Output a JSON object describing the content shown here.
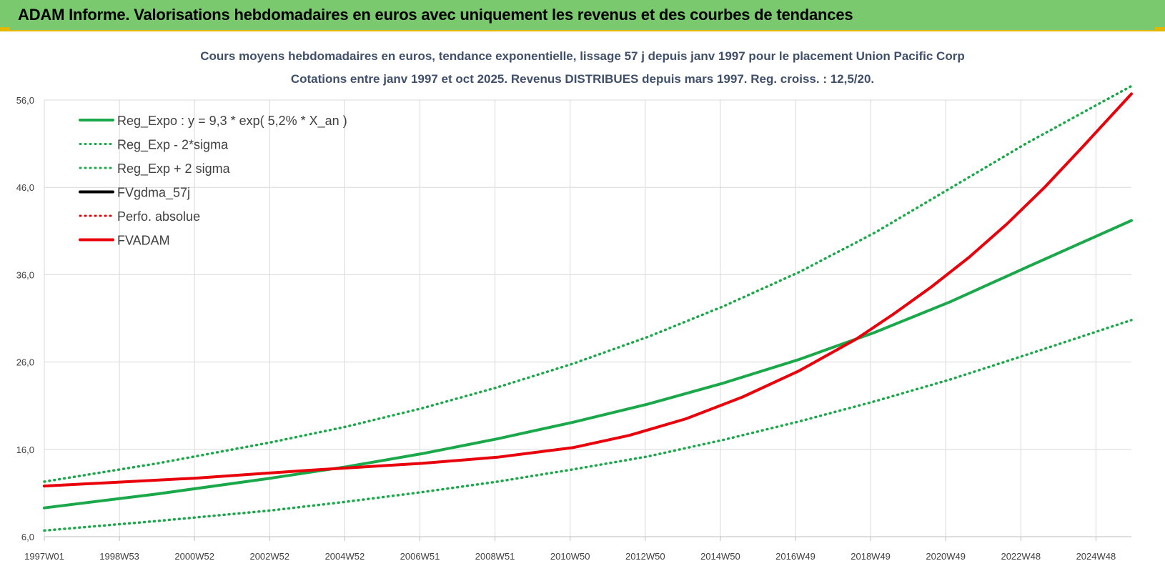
{
  "header": {
    "title": "ADAM Informe. Valorisations hebdomadaires en euros avec uniquement les revenus et des courbes de tendances"
  },
  "chart_data": {
    "type": "line",
    "title_line1": "Cours moyens hebdomadaires en euros, tendance exponentielle, lissage 57 j depuis janv 1997 pour le placement Union Pacific Corp",
    "title_line2": "Cotations entre janv 1997 et oct 2025. Revenus DISTRIBUES depuis mars 1997. Reg. croiss. : 12,5/20.",
    "ylim": [
      6,
      56
    ],
    "yticks": [
      "56,0",
      "46,0",
      "36,0",
      "26,0",
      "16,0",
      "6,0"
    ],
    "ytick_values": [
      56,
      46,
      36,
      26,
      16,
      6
    ],
    "xticks": [
      "1997W01",
      "1998W53",
      "2000W52",
      "2002W52",
      "2004W52",
      "2006W51",
      "2008W51",
      "2010W50",
      "2012W50",
      "2014W50",
      "2016W49",
      "2018W49",
      "2020W49",
      "2022W48",
      "2024W48"
    ],
    "x_start": 1997.0,
    "x_end": 2025.8,
    "grid": true,
    "legend_position": "top-left",
    "legend": [
      {
        "label": "Reg_Expo : y = 9,3 * exp( 5,2% *  X_an )",
        "color": "#1aa84a",
        "style": "solid"
      },
      {
        "label": "Reg_Exp - 2*sigma",
        "color": "#1aa84a",
        "style": "dotted"
      },
      {
        "label": "Reg_Exp + 2 sigma",
        "color": "#1aa84a",
        "style": "dotted"
      },
      {
        "label": "FVgdma_57j",
        "color": "#000000",
        "style": "solid"
      },
      {
        "label": "Perfo. absolue",
        "color": "#e8000a",
        "style": "dotted"
      },
      {
        "label": "FVADAM",
        "color": "#e8000a",
        "style": "solid"
      }
    ],
    "series": [
      {
        "name": "Reg_Expo : y = 9,3 * exp( 5,2% *  X_an )",
        "x": [
          1997.0,
          2000.0,
          2003.0,
          2005.0,
          2007.0,
          2009.0,
          2011.0,
          2013.0,
          2015.0,
          2017.0,
          2019.0,
          2021.0,
          2023.0,
          2025.8
        ],
        "values": [
          9.3,
          10.9,
          12.7,
          14.0,
          15.5,
          17.2,
          19.1,
          21.2,
          23.6,
          26.3,
          29.4,
          32.9,
          36.8,
          42.2
        ]
      },
      {
        "name": "Reg_Exp - 2*sigma",
        "x": [
          1997.0,
          2000.0,
          2003.0,
          2005.0,
          2007.0,
          2009.0,
          2011.0,
          2013.0,
          2015.0,
          2017.0,
          2019.0,
          2021.0,
          2023.0,
          2025.8
        ],
        "values": [
          6.7,
          7.8,
          9.0,
          10.0,
          11.1,
          12.3,
          13.7,
          15.2,
          17.1,
          19.2,
          21.5,
          24.0,
          26.8,
          30.8
        ]
      },
      {
        "name": "Reg_Exp + 2 sigma",
        "x": [
          1997.0,
          2000.0,
          2003.0,
          2005.0,
          2007.0,
          2009.0,
          2011.0,
          2013.0,
          2015.0,
          2017.0,
          2019.0,
          2021.0,
          2023.0,
          2025.8
        ],
        "values": [
          12.3,
          14.4,
          16.8,
          18.6,
          20.7,
          23.1,
          25.8,
          28.9,
          32.4,
          36.3,
          40.8,
          45.9,
          51.0,
          57.6
        ]
      },
      {
        "name": "FVgdma_57j",
        "x": [
          1997.0,
          2001.0,
          2004.0,
          2007.0,
          2009.0,
          2011.0,
          2012.5,
          2014.0,
          2015.5,
          2017.0,
          2018.5,
          2019.5,
          2020.5,
          2021.5,
          2022.5,
          2023.5,
          2024.5,
          2025.8
        ],
        "values": [
          11.8,
          12.7,
          13.6,
          14.4,
          15.1,
          16.2,
          17.6,
          19.5,
          22.0,
          25.0,
          28.6,
          31.5,
          34.6,
          38.0,
          41.8,
          46.0,
          50.6,
          56.7
        ]
      },
      {
        "name": "FVADAM",
        "x": [
          1997.0,
          2001.0,
          2004.0,
          2007.0,
          2009.0,
          2011.0,
          2012.5,
          2014.0,
          2015.5,
          2017.0,
          2018.5,
          2019.5,
          2020.5,
          2021.5,
          2022.5,
          2023.5,
          2024.5,
          2025.8
        ],
        "values": [
          11.8,
          12.7,
          13.6,
          14.4,
          15.1,
          16.2,
          17.6,
          19.5,
          22.0,
          25.0,
          28.6,
          31.5,
          34.6,
          38.0,
          41.8,
          46.0,
          50.6,
          56.7
        ]
      }
    ]
  }
}
